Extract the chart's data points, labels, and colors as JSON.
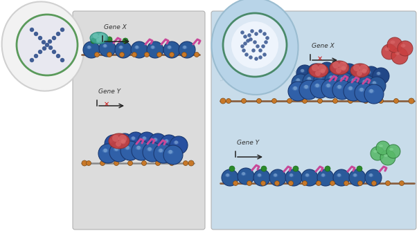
{
  "bg_left": "#dcdcdc",
  "bg_right": "#c8dcea",
  "bg_overall": "#ffffff",
  "cell_left_fill": "#ececec",
  "cell_left_border": "#5a9a5a",
  "cell_right_fill": "#b8d4e8",
  "cell_right_border": "#4a8a6a",
  "nucleus_left_fill": "#e8e8f0",
  "nucleus_right_fill": "#dce8f4",
  "nucleus_inner_right": "#eef4fc",
  "dot_color": "#2a4a88",
  "chrom_blue1": "#2a5a9a",
  "chrom_blue2": "#4a78b8",
  "chrom_blue3": "#3a6aaa",
  "chrom_highlight": "#6a98cc",
  "strand_brown": "#8a6040",
  "strand_gray": "#888888",
  "pink": "#c84898",
  "green_dot": "#2a8a2a",
  "green_blob": "#58b868",
  "green_light": "#88d898",
  "red_blob": "#c84040",
  "red_light": "#e07070",
  "teal": "#40a898",
  "teal_light": "#70c8b8",
  "orange": "#c87828",
  "arrow_col": "#222222",
  "cross_col": "#cc1111",
  "gene_x": "Gene X",
  "gene_y": "Gene Y"
}
